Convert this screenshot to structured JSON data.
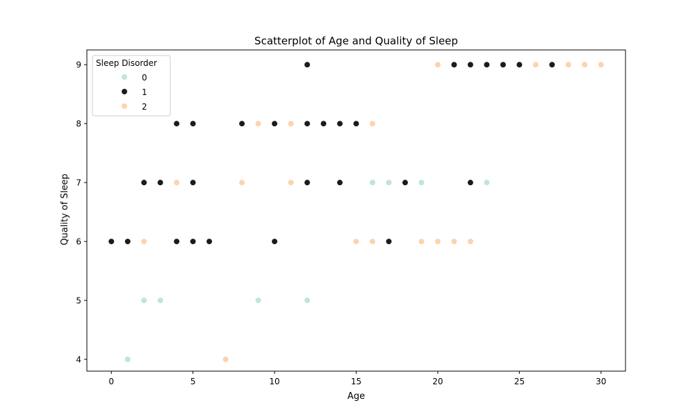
{
  "chart_data": {
    "type": "scatter",
    "title": "Scatterplot of Age and Quality of Sleep",
    "xlabel": "Age",
    "ylabel": "Quality of Sleep",
    "xlim": [
      -1.5,
      31.5
    ],
    "ylim": [
      3.8,
      9.25
    ],
    "xticks": [
      0,
      5,
      10,
      15,
      20,
      25,
      30
    ],
    "yticks": [
      4,
      5,
      6,
      7,
      8,
      9
    ],
    "grid": false,
    "legend": {
      "title": "Sleep Disorder",
      "placement": "top-left"
    },
    "series": [
      {
        "name": "0",
        "color": "#bfe6d8",
        "points": [
          [
            1,
            4
          ],
          [
            2,
            5
          ],
          [
            3,
            5
          ],
          [
            9,
            5
          ],
          [
            12,
            5
          ],
          [
            16,
            7
          ],
          [
            17,
            7
          ],
          [
            19,
            7
          ],
          [
            23,
            7
          ]
        ]
      },
      {
        "name": "1",
        "color": "#1c1c1c",
        "points": [
          [
            0,
            6
          ],
          [
            1,
            6
          ],
          [
            4,
            6
          ],
          [
            5,
            6
          ],
          [
            6,
            6
          ],
          [
            10,
            6
          ],
          [
            17,
            6
          ],
          [
            2,
            7
          ],
          [
            3,
            7
          ],
          [
            5,
            7
          ],
          [
            12,
            7
          ],
          [
            14,
            7
          ],
          [
            18,
            7
          ],
          [
            22,
            7
          ],
          [
            4,
            8
          ],
          [
            5,
            8
          ],
          [
            8,
            8
          ],
          [
            10,
            8
          ],
          [
            12,
            8
          ],
          [
            13,
            8
          ],
          [
            14,
            8
          ],
          [
            15,
            8
          ],
          [
            12,
            9
          ],
          [
            21,
            9
          ],
          [
            22,
            9
          ],
          [
            23,
            9
          ],
          [
            24,
            9
          ],
          [
            25,
            9
          ],
          [
            27,
            9
          ]
        ]
      },
      {
        "name": "2",
        "color": "#fdd3ad",
        "points": [
          [
            7,
            4
          ],
          [
            2,
            6
          ],
          [
            15,
            6
          ],
          [
            16,
            6
          ],
          [
            19,
            6
          ],
          [
            20,
            6
          ],
          [
            21,
            6
          ],
          [
            22,
            6
          ],
          [
            4,
            7
          ],
          [
            8,
            7
          ],
          [
            11,
            7
          ],
          [
            9,
            8
          ],
          [
            11,
            8
          ],
          [
            16,
            8
          ],
          [
            20,
            9
          ],
          [
            26,
            9
          ],
          [
            28,
            9
          ],
          [
            29,
            9
          ],
          [
            30,
            9
          ]
        ]
      }
    ]
  }
}
